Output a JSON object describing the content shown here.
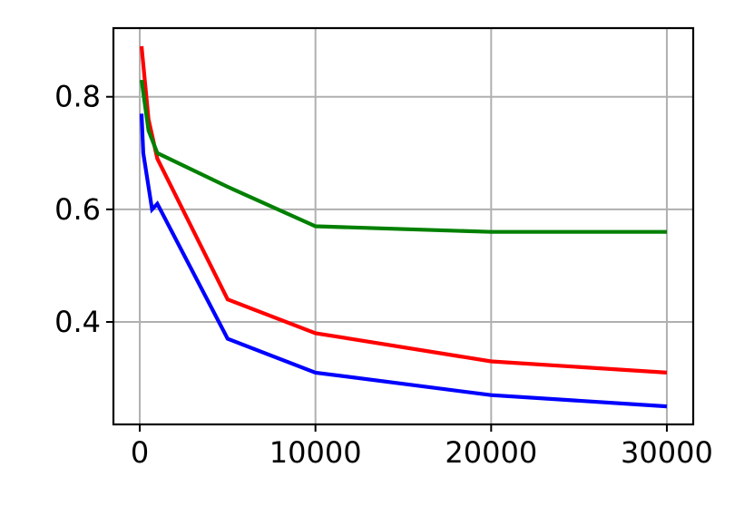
{
  "chart_data": {
    "type": "line",
    "title": "",
    "xlabel": "",
    "ylabel": "",
    "xlim": [
      -1500,
      31500
    ],
    "ylim": [
      0.218,
      0.922
    ],
    "xticks": [
      0,
      10000,
      20000,
      30000
    ],
    "xtick_labels": [
      "0",
      "10000",
      "20000",
      "30000"
    ],
    "yticks": [
      0.4,
      0.6,
      0.8
    ],
    "ytick_labels": [
      "0.4",
      "0.6",
      "0.8"
    ],
    "grid": true,
    "legend": "none",
    "series": [
      {
        "color": "#ff0000",
        "x": [
          100,
          500,
          1000,
          5000,
          10000,
          20000,
          30000
        ],
        "y": [
          0.89,
          0.76,
          0.69,
          0.44,
          0.38,
          0.33,
          0.31
        ]
      },
      {
        "color": "#008000",
        "x": [
          100,
          500,
          1000,
          5000,
          10000,
          20000,
          30000
        ],
        "y": [
          0.83,
          0.74,
          0.7,
          0.64,
          0.57,
          0.56,
          0.56
        ]
      },
      {
        "color": "#0000ff",
        "x": [
          100,
          200,
          700,
          1000,
          5000,
          10000,
          20000,
          30000
        ],
        "y": [
          0.77,
          0.7,
          0.6,
          0.61,
          0.37,
          0.31,
          0.27,
          0.25
        ]
      }
    ]
  }
}
